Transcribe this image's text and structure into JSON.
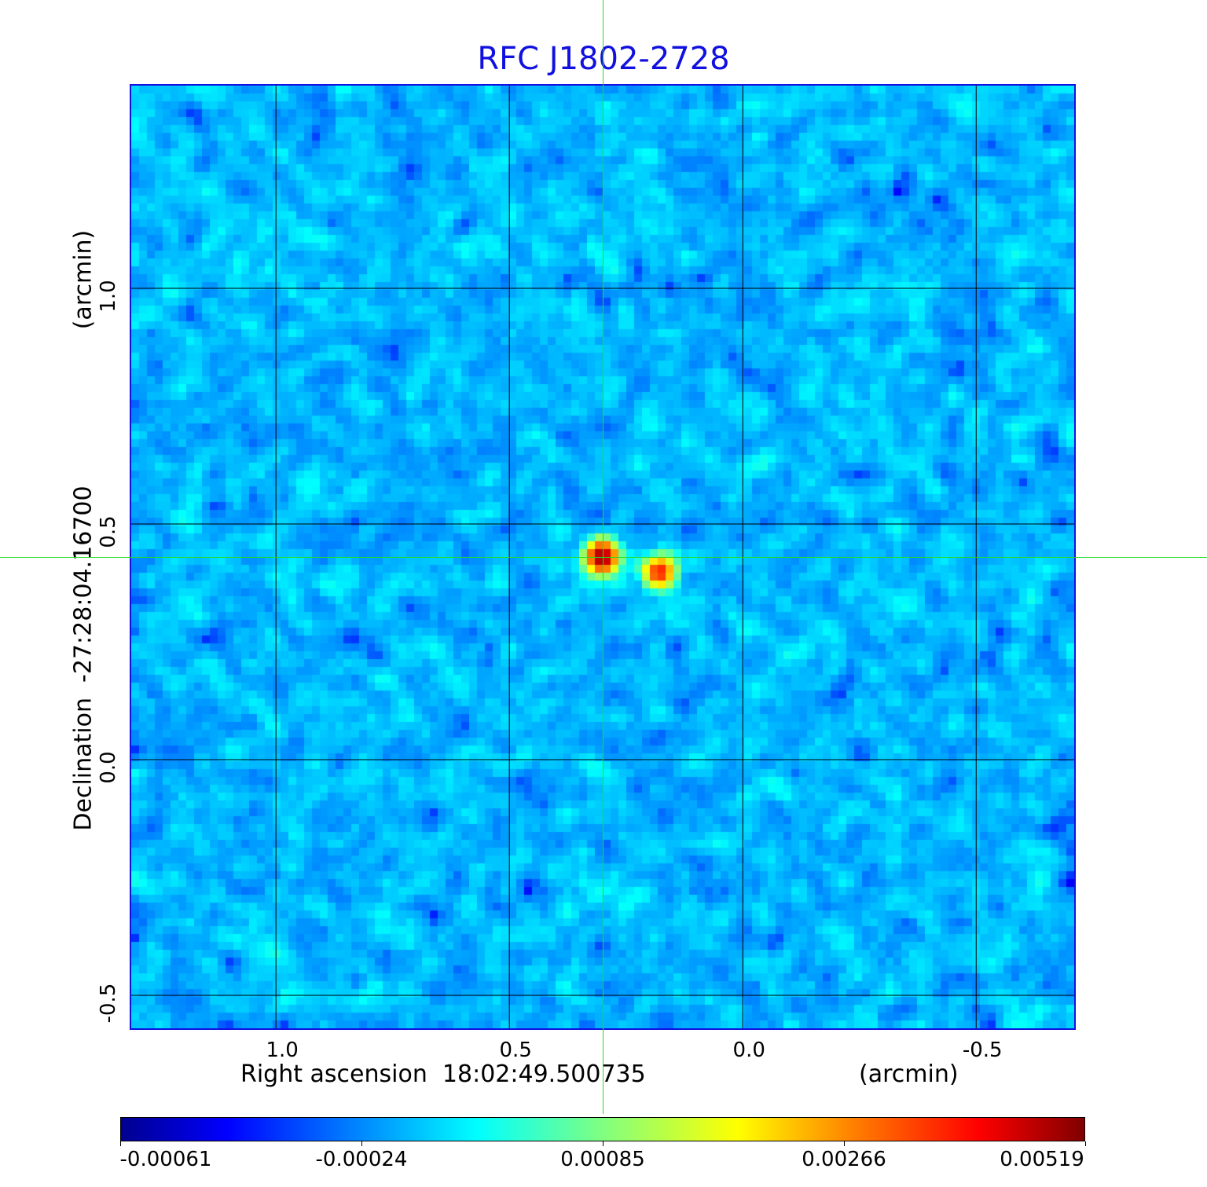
{
  "chart_data": {
    "type": "heatmap",
    "title": "RFC J1802-2728",
    "xlabel": "Right ascension  18:02:49.500735",
    "xunit": "(arcmin)",
    "ylabel": "Declination  -27:28:04.16700",
    "yunit": "(arcmin)",
    "xlim": [
      1.31,
      -0.71
    ],
    "ylim": [
      -0.57,
      1.43
    ],
    "xticks": [
      {
        "value": 1.0,
        "label": "1.0"
      },
      {
        "value": 0.5,
        "label": "0.5"
      },
      {
        "value": 0.0,
        "label": "0.0"
      },
      {
        "value": -0.5,
        "label": "-0.5"
      }
    ],
    "yticks": [
      {
        "value": 1.0,
        "label": "1.0"
      },
      {
        "value": 0.5,
        "label": "0.5"
      },
      {
        "value": 0.0,
        "label": "0.0"
      },
      {
        "value": -0.5,
        "label": "-0.5"
      }
    ],
    "grid": true,
    "crosshair": {
      "x": 0.3,
      "y": 0.43
    },
    "colormap": "jet",
    "colorbar": {
      "position": "bottom",
      "ticks": [
        "-0.00061",
        "-0.00024",
        "0.00085",
        "0.00266",
        "0.00519"
      ],
      "tick_values": [
        -0.00061,
        -0.00024,
        0.00085,
        0.00266,
        0.00519
      ]
    },
    "peaks": [
      {
        "x": 0.3,
        "y": 0.43,
        "value": 0.00519
      },
      {
        "x": 0.18,
        "y": 0.4,
        "value": 0.0035
      }
    ],
    "noise_level": 0.00025,
    "pixel_grid": 120
  },
  "colors": {
    "title": "#1010e0",
    "frame": "#1010e0",
    "crosshair": "#22dd22",
    "grid": "#000000"
  }
}
